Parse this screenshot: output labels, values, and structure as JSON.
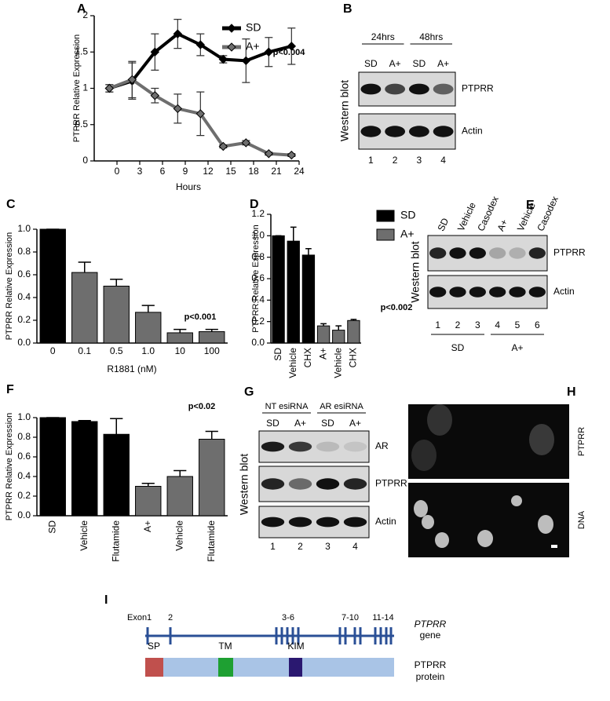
{
  "chart_data": [
    {
      "type": "line",
      "panel": "A",
      "x_label": "Hours",
      "y_label": "PTPRR Relative Expression",
      "x": [
        -1,
        2,
        5,
        8,
        11,
        14,
        17,
        20,
        23
      ],
      "series": [
        {
          "name": "SD",
          "color": "#000000",
          "values": [
            1.0,
            1.1,
            1.5,
            1.75,
            1.6,
            1.4,
            1.38,
            1.5,
            1.58
          ],
          "errors": [
            0.05,
            0.25,
            0.25,
            0.2,
            0.15,
            0.05,
            0.3,
            0.2,
            0.25
          ]
        },
        {
          "name": "A+",
          "color": "#6e6e6e",
          "values": [
            1.0,
            1.12,
            0.9,
            0.72,
            0.65,
            0.2,
            0.25,
            0.1,
            0.08
          ],
          "errors": [
            0.05,
            0.25,
            0.1,
            0.2,
            0.3,
            0.02,
            0.03,
            0.02,
            0.02
          ]
        }
      ],
      "xlim": [
        -3,
        24
      ],
      "xticks": [
        0,
        3,
        6,
        9,
        12,
        15,
        18,
        21,
        24
      ],
      "ylim": [
        0,
        2
      ],
      "yticks": [
        0,
        0.5,
        1,
        1.5,
        2
      ],
      "annotation": "p<0.004"
    },
    {
      "type": "bar",
      "panel": "C",
      "x_label": "R1881 (nM)",
      "y_label": "PTPRR Relative Expression",
      "categories": [
        "0",
        "0.1",
        "0.5",
        "1.0",
        "10",
        "100"
      ],
      "values": [
        1.0,
        0.62,
        0.5,
        0.27,
        0.09,
        0.1
      ],
      "errors": [
        0,
        0.09,
        0.06,
        0.06,
        0.03,
        0.02
      ],
      "colors": [
        "#000000",
        "#6e6e6e",
        "#6e6e6e",
        "#6e6e6e",
        "#6e6e6e",
        "#6e6e6e"
      ],
      "ylim": [
        0,
        1.0
      ],
      "yticks": [
        {
          "value": 0,
          "label": "0.0"
        },
        0.2,
        0.4,
        0.6,
        0.8,
        {
          "value": 1.0,
          "label": "1.0"
        }
      ],
      "annotation": "p<0.001"
    },
    {
      "type": "bar",
      "panel": "D",
      "y_label": "PTPRR Relative Expression",
      "categories": [
        "SD",
        "Vehicle",
        "CHX",
        "A+",
        "Vehicle",
        "CHX"
      ],
      "series": [
        {
          "name": "SD",
          "color": "#000000",
          "values": [
            1.0,
            0.95,
            0.82,
            null,
            null,
            null
          ],
          "errors": [
            0,
            0.13,
            0.06,
            null,
            null,
            null
          ]
        },
        {
          "name": "A+",
          "color": "#6e6e6e",
          "values": [
            null,
            null,
            null,
            0.16,
            0.12,
            0.21
          ],
          "errors": [
            null,
            null,
            null,
            0.02,
            0.04,
            0.01
          ]
        }
      ],
      "ylim": [
        0,
        1.2
      ],
      "yticks": [
        {
          "value": 0,
          "label": "0.0"
        },
        0.2,
        0.4,
        0.6,
        0.8,
        {
          "value": 1.0,
          "label": "1.0"
        },
        1.2
      ],
      "annotation": "p<0.002"
    },
    {
      "type": "bar",
      "panel": "F",
      "y_label": "PTPRR Relative Expression",
      "categories": [
        "SD",
        "Vehicle",
        "Flutamide",
        "A+",
        "Vehicle",
        "Flutamide"
      ],
      "values": [
        1.0,
        0.96,
        0.83,
        0.3,
        0.4,
        0.78
      ],
      "errors": [
        0,
        0.01,
        0.16,
        0.03,
        0.06,
        0.08
      ],
      "colors": [
        "#000000",
        "#000000",
        "#000000",
        "#6e6e6e",
        "#6e6e6e",
        "#6e6e6e"
      ],
      "ylim": [
        0,
        1.0
      ],
      "yticks": [
        {
          "value": 0,
          "label": "0.0"
        },
        0.2,
        0.4,
        0.6,
        0.8,
        {
          "value": 1.0,
          "label": "1.0"
        }
      ],
      "annotation": "p<0.02"
    }
  ],
  "blots": [
    {
      "panel": "B",
      "side_label": "Western blot",
      "groups": [
        "24hrs",
        "48hrs"
      ],
      "columns": [
        "SD",
        "A+",
        "SD",
        "A+"
      ],
      "rows": [
        "PTPRR",
        "Actin"
      ],
      "lanes": [
        "1",
        "2",
        "3",
        "4"
      ]
    },
    {
      "panel": "E",
      "side_label": "Western blot",
      "groups": [
        "SD",
        "A+"
      ],
      "columns": [
        "SD",
        "Vehicle",
        "Casodex",
        "A+",
        "Vehicle",
        "Casodex"
      ],
      "rows": [
        "PTPRR",
        "Actin"
      ],
      "lanes": [
        "1",
        "2",
        "3",
        "4",
        "5",
        "6"
      ]
    },
    {
      "panel": "G",
      "side_label": "Western blot",
      "groups": [
        "NT esiRNA",
        "AR esiRNA"
      ],
      "columns": [
        "SD",
        "A+",
        "SD",
        "A+"
      ],
      "rows": [
        "AR",
        "PTPRR",
        "Actin"
      ],
      "lanes": [
        "1",
        "2",
        "3",
        "4"
      ]
    }
  ],
  "microscopy": {
    "panel": "H",
    "channels": [
      "PTPRR",
      "DNA"
    ]
  },
  "gene_diagram": {
    "panel": "I",
    "exon_label": "Exon",
    "exons": [
      "1",
      "2",
      "3-6",
      "7-10",
      "11-14"
    ],
    "gene_label": [
      "PTPRR",
      "gene"
    ],
    "domains": [
      "SP",
      "TM",
      "KIM"
    ],
    "protein_label": [
      "PTPRR",
      "protein"
    ]
  }
}
